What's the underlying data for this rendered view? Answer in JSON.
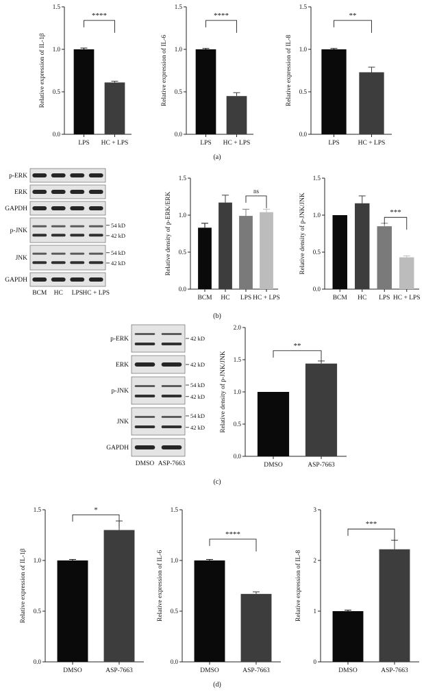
{
  "panel_labels": {
    "a": "(a)",
    "b": "(b)",
    "c": "(c)",
    "d": "(d)"
  },
  "colors": {
    "black": "#0a0a0a",
    "dark": "#3d3d3d",
    "mid": "#7a7a7a",
    "light": "#bcbcbc",
    "axis": "#222222",
    "band": "#111111",
    "blot_bg": "#e4e4e4"
  },
  "blots_b": {
    "rows": [
      {
        "label": "p-ERK",
        "kd": [],
        "sub": false
      },
      {
        "label": "ERK",
        "kd": [],
        "sub": false
      },
      {
        "label": "GAPDH",
        "kd": [],
        "sub": false
      },
      {
        "label": "p-JNK",
        "kd": [
          "54 kD",
          "42 kD"
        ],
        "sub": true
      },
      {
        "label": "JNK",
        "kd": [
          "54 kD",
          "42 kD"
        ],
        "sub": true
      },
      {
        "label": "GAPDH",
        "kd": [],
        "sub": false
      }
    ],
    "lanes": [
      "BCM",
      "HC",
      "LPS",
      "HC + LPS"
    ]
  },
  "blots_c": {
    "rows": [
      {
        "label": "p-ERK",
        "kd": [
          "42 kD"
        ],
        "sub": true
      },
      {
        "label": "ERK",
        "kd": [
          "42 kD"
        ],
        "sub": false
      },
      {
        "label": "p-JNK",
        "kd": [
          "54 kD",
          "42 kD"
        ],
        "sub": true
      },
      {
        "label": "JNK",
        "kd": [
          "54 kD",
          "42 kD"
        ],
        "sub": true
      },
      {
        "label": "GAPDH",
        "kd": [],
        "sub": false
      }
    ],
    "lanes": [
      "DMSO",
      "ASP-7663"
    ]
  },
  "chart_data": [
    {
      "id": "a1",
      "type": "bar",
      "categories": [
        "LPS",
        "HC + LPS"
      ],
      "values": [
        1.0,
        0.61
      ],
      "errors": [
        0.015,
        0.015
      ],
      "ylabel": "Relative expression of IL-1β",
      "ylim": [
        0,
        1.5
      ],
      "yticks": [
        "0.0",
        "0.5",
        "1.0",
        "1.5"
      ],
      "tickvals": [
        0,
        0.5,
        1.0,
        1.5
      ],
      "colors": [
        "black",
        "dark"
      ],
      "significance": [
        {
          "from": 0,
          "to": 1,
          "label": "****",
          "y": 1.34
        }
      ]
    },
    {
      "id": "a2",
      "type": "bar",
      "categories": [
        "LPS",
        "HC + LPS"
      ],
      "values": [
        1.0,
        0.45
      ],
      "errors": [
        0.01,
        0.04
      ],
      "ylabel": "Relative expression of IL-6",
      "ylim": [
        0,
        1.5
      ],
      "yticks": [
        "0.0",
        "0.5",
        "1.0",
        "1.5"
      ],
      "tickvals": [
        0,
        0.5,
        1.0,
        1.5
      ],
      "colors": [
        "black",
        "dark"
      ],
      "significance": [
        {
          "from": 0,
          "to": 1,
          "label": "****",
          "y": 1.34
        }
      ]
    },
    {
      "id": "a3",
      "type": "bar",
      "categories": [
        "LPS",
        "HC + LPS"
      ],
      "values": [
        1.0,
        0.73
      ],
      "errors": [
        0.01,
        0.06
      ],
      "ylabel": "Relative expression of IL-8",
      "ylim": [
        0,
        1.5
      ],
      "yticks": [
        "0.0",
        "0.5",
        "1.0",
        "1.5"
      ],
      "tickvals": [
        0,
        0.5,
        1.0,
        1.5
      ],
      "colors": [
        "black",
        "dark"
      ],
      "significance": [
        {
          "from": 0,
          "to": 1,
          "label": "**",
          "y": 1.34
        }
      ]
    },
    {
      "id": "b1",
      "type": "bar",
      "categories": [
        "BCM",
        "HC",
        "LPS",
        "HC + LPS"
      ],
      "values": [
        0.83,
        1.17,
        0.99,
        1.04
      ],
      "errors": [
        0.06,
        0.1,
        0.09,
        0.04
      ],
      "ylabel": "Relative density of p-ERK/ERK",
      "ylim": [
        0,
        1.5
      ],
      "yticks": [
        "0.0",
        "0.5",
        "1.0",
        "1.5"
      ],
      "tickvals": [
        0,
        0.5,
        1.0,
        1.5
      ],
      "colors": [
        "black",
        "dark",
        "mid",
        "light"
      ],
      "significance": [
        {
          "from": 2,
          "to": 3,
          "label": "ns",
          "y": 1.26
        }
      ]
    },
    {
      "id": "b2",
      "type": "bar",
      "categories": [
        "BCM",
        "HC",
        "LPS",
        "HC + LPS"
      ],
      "values": [
        1.0,
        1.16,
        0.85,
        0.43
      ],
      "errors": [
        0,
        0.1,
        0.04,
        0.02
      ],
      "ylabel": "Relative density of p-JNK/JNK",
      "ylim": [
        0,
        1.5
      ],
      "yticks": [
        "0.0",
        "0.5",
        "1.0",
        "1.5"
      ],
      "tickvals": [
        0,
        0.5,
        1.0,
        1.5
      ],
      "colors": [
        "black",
        "dark",
        "mid",
        "light"
      ],
      "significance": [
        {
          "from": 2,
          "to": 3,
          "label": "***",
          "y": 0.97
        }
      ]
    },
    {
      "id": "c1",
      "type": "bar",
      "categories": [
        "DMSO",
        "ASP-7663"
      ],
      "values": [
        1.0,
        1.44
      ],
      "errors": [
        0,
        0.04
      ],
      "ylabel": "Relative density of p-JNK/JNK",
      "ylim": [
        0,
        2.0
      ],
      "yticks": [
        "0.0",
        "0.5",
        "1.0",
        "1.5",
        "2.0"
      ],
      "tickvals": [
        0,
        0.5,
        1.0,
        1.5,
        2.0
      ],
      "colors": [
        "black",
        "dark"
      ],
      "significance": [
        {
          "from": 0,
          "to": 1,
          "label": "**",
          "y": 1.64
        }
      ]
    },
    {
      "id": "d1",
      "type": "bar",
      "categories": [
        "DMSO",
        "ASP-7663"
      ],
      "values": [
        1.0,
        1.3
      ],
      "errors": [
        0.01,
        0.09
      ],
      "ylabel": "Relative expression of IL-1β",
      "ylim": [
        0,
        1.5
      ],
      "yticks": [
        "0.0",
        "0.5",
        "1.0",
        "1.5"
      ],
      "tickvals": [
        0,
        0.5,
        1.0,
        1.5
      ],
      "colors": [
        "black",
        "dark"
      ],
      "significance": [
        {
          "from": 0,
          "to": 1,
          "label": "*",
          "y": 1.45
        }
      ]
    },
    {
      "id": "d2",
      "type": "bar",
      "categories": [
        "DMSO",
        "ASP-7663"
      ],
      "values": [
        1.0,
        0.67
      ],
      "errors": [
        0.01,
        0.02
      ],
      "ylabel": "Relative expression of IL-6",
      "ylim": [
        0,
        1.5
      ],
      "yticks": [
        "0.0",
        "0.5",
        "1.0",
        "1.5"
      ],
      "tickvals": [
        0,
        0.5,
        1.0,
        1.5
      ],
      "colors": [
        "black",
        "dark"
      ],
      "significance": [
        {
          "from": 0,
          "to": 1,
          "label": "****",
          "y": 1.21
        }
      ]
    },
    {
      "id": "d3",
      "type": "bar",
      "categories": [
        "DMSO",
        "ASP-7663"
      ],
      "values": [
        1.0,
        2.22
      ],
      "errors": [
        0.02,
        0.18
      ],
      "ylabel": "Relative expression of IL-8",
      "ylim": [
        0,
        3
      ],
      "yticks": [
        "0",
        "1",
        "2",
        "3"
      ],
      "tickvals": [
        0,
        1,
        2,
        3
      ],
      "colors": [
        "black",
        "dark"
      ],
      "significance": [
        {
          "from": 0,
          "to": 1,
          "label": "***",
          "y": 2.62
        }
      ]
    }
  ]
}
